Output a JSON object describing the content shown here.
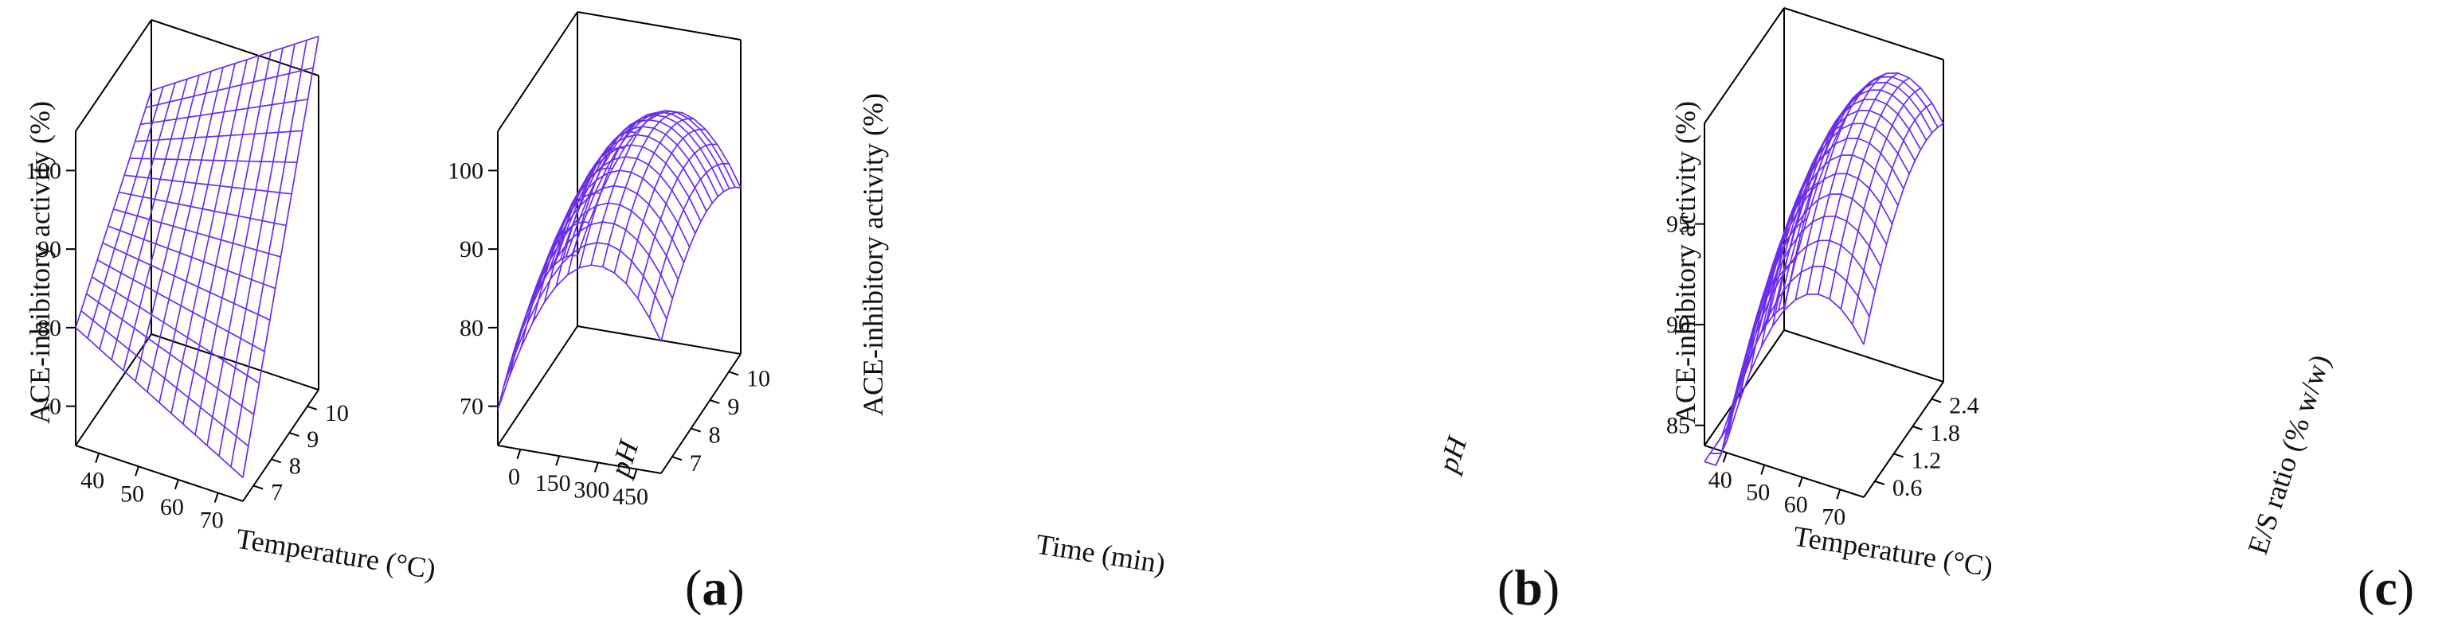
{
  "chart_data": [
    {
      "type": "surface3d",
      "panel_label": "(a)",
      "panel_letter": "a",
      "xlabel": "Temperature (°C)",
      "ylabel": "pH",
      "zlabel": "ACE-inhibitory activity (%)",
      "x_ticks": [
        "40",
        "50",
        "60",
        "70"
      ],
      "y_ticks": [
        "7",
        "8",
        "9",
        "10"
      ],
      "z_ticks": [
        "70",
        "80",
        "90",
        "100"
      ],
      "xlim": [
        40,
        70
      ],
      "ylim": [
        6.5,
        10
      ],
      "zlim": [
        65,
        105
      ],
      "corner_z": {
        "low_x_low_y": 80,
        "high_x_low_y": 68,
        "low_x_high_y": 96,
        "high_x_high_y": 110
      },
      "mesh_color": "#6b2cf0"
    },
    {
      "type": "surface3d",
      "panel_label": "(b)",
      "panel_letter": "b",
      "xlabel": "Time (min)",
      "ylabel": "pH",
      "zlabel": "ACE-inhibitory activity (%)",
      "x_ticks": [
        "0",
        "150",
        "300",
        "450"
      ],
      "y_ticks": [
        "7",
        "8",
        "9",
        "10"
      ],
      "z_ticks": [
        "70",
        "80",
        "90",
        "100"
      ],
      "xlim": [
        0,
        540
      ],
      "ylim": [
        6.5,
        10
      ],
      "zlim": [
        65,
        105
      ],
      "peak": {
        "x": 330,
        "y": 8.6,
        "z": 98
      },
      "mesh_color": "#6b2cf0"
    },
    {
      "type": "surface3d",
      "panel_label": "(c)",
      "panel_letter": "c",
      "xlabel": "Temperature (°C)",
      "ylabel": "E/S ratio (% w/w)",
      "zlabel": "ACE-inhibitory activity (%)",
      "x_ticks": [
        "40",
        "50",
        "60",
        "70"
      ],
      "y_ticks": [
        "0.6",
        "1.2",
        "1.8",
        "2.4"
      ],
      "z_ticks": [
        "85",
        "90",
        "95"
      ],
      "xlim": [
        40,
        70
      ],
      "ylim": [
        0.3,
        2.7
      ],
      "zlim": [
        84,
        100
      ],
      "peak": {
        "x": 62,
        "y": 2.2,
        "z": 99
      },
      "mesh_color": "#6b2cf0"
    }
  ]
}
